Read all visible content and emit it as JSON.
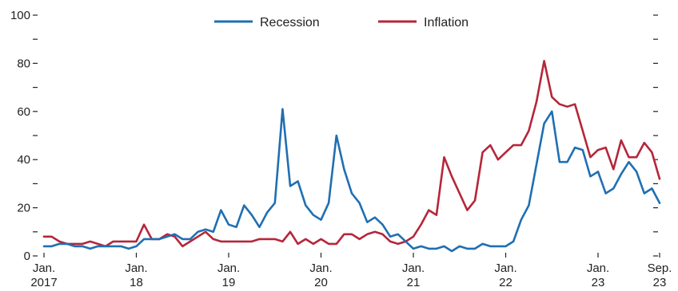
{
  "chart_data": {
    "type": "line",
    "title": "",
    "xlabel": "",
    "ylabel": "",
    "ylim": [
      0,
      100
    ],
    "yticks": [
      0,
      20,
      40,
      60,
      80,
      100
    ],
    "grid": false,
    "legend_position": "top-center",
    "x_ticks": [
      {
        "month": 0,
        "line1": "Jan.",
        "line2": "2017"
      },
      {
        "month": 12,
        "line1": "Jan.",
        "line2": "18"
      },
      {
        "month": 24,
        "line1": "Jan.",
        "line2": "19"
      },
      {
        "month": 36,
        "line1": "Jan.",
        "line2": "20"
      },
      {
        "month": 48,
        "line1": "Jan.",
        "line2": "21"
      },
      {
        "month": 60,
        "line1": "Jan.",
        "line2": "22"
      },
      {
        "month": 72,
        "line1": "Jan.",
        "line2": "23"
      },
      {
        "month": 80,
        "line1": "Sep.",
        "line2": "23"
      }
    ],
    "series": [
      {
        "name": "Recession",
        "color": "#1f6fb2",
        "values": [
          4,
          4,
          5,
          5,
          4,
          4,
          3,
          4,
          4,
          4,
          4,
          3,
          4,
          7,
          7,
          7,
          8,
          9,
          7,
          7,
          10,
          11,
          10,
          19,
          13,
          12,
          21,
          17,
          12,
          18,
          22,
          61,
          29,
          31,
          21,
          17,
          15,
          22,
          50,
          36,
          26,
          22,
          14,
          16,
          13,
          8,
          9,
          6,
          3,
          4,
          3,
          3,
          4,
          2,
          4,
          3,
          3,
          5,
          4,
          4,
          4,
          6,
          15,
          21,
          38,
          55,
          60,
          39,
          39,
          45,
          44,
          33,
          35,
          26,
          28,
          34,
          39,
          35,
          26,
          28,
          22
        ]
      },
      {
        "name": "Inflation",
        "color": "#b5263a",
        "values": [
          8,
          8,
          6,
          5,
          5,
          5,
          6,
          5,
          4,
          6,
          6,
          6,
          6,
          13,
          7,
          7,
          9,
          8,
          4,
          6,
          8,
          10,
          7,
          6,
          6,
          6,
          6,
          6,
          7,
          7,
          7,
          6,
          10,
          5,
          7,
          5,
          7,
          5,
          5,
          9,
          9,
          7,
          9,
          10,
          9,
          6,
          5,
          6,
          8,
          13,
          19,
          17,
          41,
          33,
          26,
          19,
          23,
          43,
          46,
          40,
          43,
          46,
          46,
          52,
          64,
          81,
          66,
          63,
          62,
          63,
          52,
          41,
          44,
          45,
          36,
          48,
          41,
          41,
          47,
          43,
          32
        ]
      }
    ]
  }
}
